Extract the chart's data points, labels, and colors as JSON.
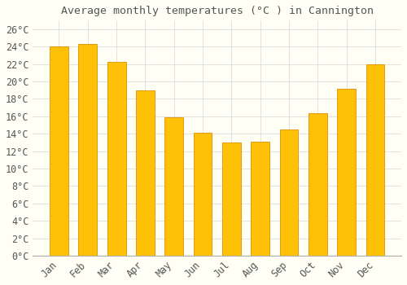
{
  "title": "Average monthly temperatures (°C ) in Cannington",
  "months": [
    "Jan",
    "Feb",
    "Mar",
    "Apr",
    "May",
    "Jun",
    "Jul",
    "Aug",
    "Sep",
    "Oct",
    "Nov",
    "Dec"
  ],
  "values": [
    24.0,
    24.3,
    22.3,
    19.0,
    15.9,
    14.1,
    13.0,
    13.1,
    14.5,
    16.4,
    19.2,
    22.0
  ],
  "bar_color": "#FFC107",
  "bar_edge_color": "#E09000",
  "bar_left_edge": "#FFD060",
  "background_color": "#FFFFF5",
  "grid_color": "#DDDDDD",
  "text_color": "#555555",
  "ylim": [
    0,
    27
  ],
  "yticks": [
    0,
    2,
    4,
    6,
    8,
    10,
    12,
    14,
    16,
    18,
    20,
    22,
    24,
    26
  ],
  "title_fontsize": 9.5,
  "tick_fontsize": 8.5,
  "bar_width": 0.65
}
